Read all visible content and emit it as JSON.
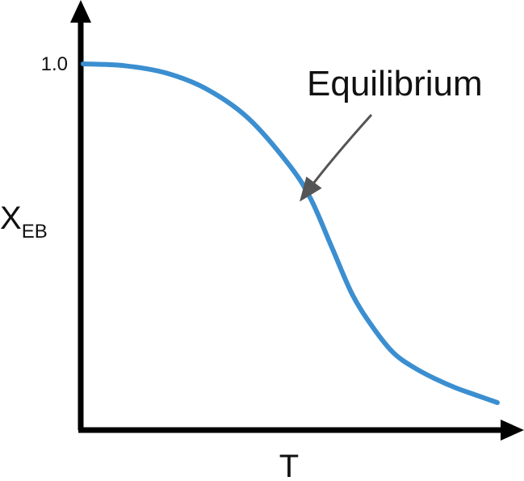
{
  "chart_data": {
    "type": "line",
    "title": "",
    "xlabel": "T",
    "ylabel": {
      "main": "X",
      "subscript": "EB"
    },
    "yticks": [
      {
        "value": 1.0,
        "label": "1.0"
      }
    ],
    "xlim": [
      0,
      1
    ],
    "ylim": [
      0,
      1.2
    ],
    "grid": false,
    "series": [
      {
        "color": "#3b8fd0",
        "x": [
          0.0,
          0.1,
          0.2,
          0.3,
          0.4,
          0.5,
          0.55,
          0.6,
          0.65,
          0.7,
          0.75,
          0.8,
          0.85,
          0.9,
          0.95,
          1.0
        ],
        "y": [
          1.0,
          0.995,
          0.975,
          0.93,
          0.85,
          0.72,
          0.63,
          0.5,
          0.37,
          0.28,
          0.21,
          0.17,
          0.14,
          0.115,
          0.095,
          0.075
        ]
      }
    ],
    "annotations": [
      {
        "text": "Equilibrium",
        "points_to": {
          "x": 0.54,
          "y": 0.65
        }
      }
    ],
    "colors": {
      "axis": "#000000",
      "curve": "#3b8fd0",
      "arrow": "#555555"
    }
  }
}
